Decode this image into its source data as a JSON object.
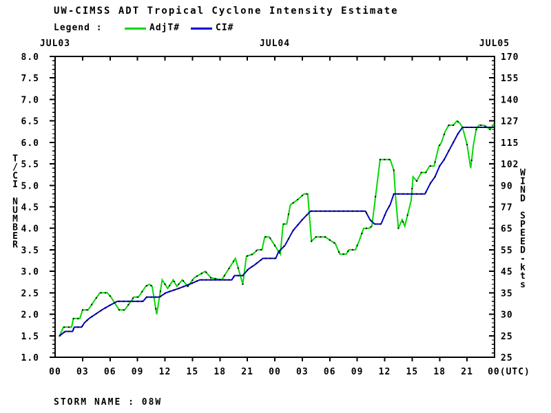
{
  "title": "UW-CIMSS ADT Tropical Cyclone Intensity Estimate",
  "legend": {
    "label": "Legend :",
    "series": [
      {
        "name": "AdjT#",
        "color": "#00d800"
      },
      {
        "name": "CI#",
        "color": "#0000d0"
      }
    ]
  },
  "storm_name": "STORM NAME : 08W",
  "chart_data": {
    "type": "line",
    "title": "UW-CIMSS ADT Tropical Cyclone Intensity Estimate",
    "grid": false,
    "x_axis": {
      "hours_span": 48,
      "tick_interval_hours": 3,
      "bottom_tick_labels": [
        "00",
        "03",
        "06",
        "09",
        "12",
        "15",
        "18",
        "21",
        "00",
        "03",
        "06",
        "09",
        "12",
        "15",
        "18",
        "21",
        "00(UTC)"
      ],
      "top_date_labels": [
        {
          "label": "JUL03",
          "hour": 0
        },
        {
          "label": "JUL04",
          "hour": 24
        },
        {
          "label": "JUL05",
          "hour": 48
        }
      ]
    },
    "y_axis_left": {
      "title": "T/CI NUMBER",
      "min": 1.0,
      "max": 8.0,
      "major_step": 0.5,
      "minor_step": 0.1,
      "tick_labels": [
        "8.0",
        "7.5",
        "7.0",
        "6.5",
        "6.0",
        "5.5",
        "5.0",
        "4.5",
        "4.0",
        "3.5",
        "3.0",
        "2.5",
        "2.0",
        "1.5",
        "1.0"
      ]
    },
    "y_axis_right": {
      "title": "WIND SPEED-kts",
      "tick_labels": [
        "170",
        "155",
        "140",
        "127",
        "115",
        "102",
        "90",
        "77",
        "65",
        "55",
        "45",
        "35",
        "30",
        "25",
        "25"
      ]
    },
    "series": [
      {
        "name": "AdjT#",
        "color": "#00d800",
        "markers": true,
        "points": [
          [
            0.5,
            1.5
          ],
          [
            0.9,
            1.7
          ],
          [
            1.8,
            1.7
          ],
          [
            2.0,
            1.9
          ],
          [
            2.7,
            1.9
          ],
          [
            3.0,
            2.1
          ],
          [
            3.6,
            2.1
          ],
          [
            4.4,
            2.35
          ],
          [
            4.9,
            2.5
          ],
          [
            5.7,
            2.5
          ],
          [
            6.1,
            2.4
          ],
          [
            7.0,
            2.1
          ],
          [
            7.6,
            2.1
          ],
          [
            8.1,
            2.25
          ],
          [
            8.6,
            2.4
          ],
          [
            9.1,
            2.4
          ],
          [
            9.9,
            2.65
          ],
          [
            10.3,
            2.7
          ],
          [
            10.6,
            2.65
          ],
          [
            11.1,
            2.0
          ],
          [
            11.7,
            2.8
          ],
          [
            12.3,
            2.6
          ],
          [
            12.9,
            2.8
          ],
          [
            13.3,
            2.65
          ],
          [
            13.9,
            2.8
          ],
          [
            14.5,
            2.65
          ],
          [
            15.2,
            2.85
          ],
          [
            16.4,
            3.0
          ],
          [
            17.0,
            2.85
          ],
          [
            18.2,
            2.8
          ],
          [
            19.7,
            3.3
          ],
          [
            20.5,
            2.7
          ],
          [
            20.9,
            3.35
          ],
          [
            21.6,
            3.4
          ],
          [
            22.1,
            3.5
          ],
          [
            22.6,
            3.5
          ],
          [
            22.9,
            3.8
          ],
          [
            23.4,
            3.8
          ],
          [
            24.0,
            3.6
          ],
          [
            24.6,
            3.4
          ],
          [
            24.9,
            4.1
          ],
          [
            25.3,
            4.1
          ],
          [
            25.7,
            4.55
          ],
          [
            26.4,
            4.65
          ],
          [
            27.2,
            4.8
          ],
          [
            27.6,
            4.8
          ],
          [
            28.0,
            3.7
          ],
          [
            28.5,
            3.8
          ],
          [
            29.5,
            3.8
          ],
          [
            30.2,
            3.7
          ],
          [
            30.6,
            3.65
          ],
          [
            31.1,
            3.4
          ],
          [
            31.8,
            3.4
          ],
          [
            32.1,
            3.5
          ],
          [
            32.8,
            3.5
          ],
          [
            33.2,
            3.7
          ],
          [
            33.7,
            4.0
          ],
          [
            34.3,
            4.0
          ],
          [
            34.6,
            4.05
          ],
          [
            35.5,
            5.6
          ],
          [
            36.6,
            5.6
          ],
          [
            37.0,
            5.35
          ],
          [
            37.2,
            4.7
          ],
          [
            37.5,
            4.0
          ],
          [
            37.9,
            4.2
          ],
          [
            38.2,
            4.05
          ],
          [
            38.9,
            4.65
          ],
          [
            39.1,
            5.2
          ],
          [
            39.5,
            5.1
          ],
          [
            40.0,
            5.3
          ],
          [
            40.5,
            5.3
          ],
          [
            40.9,
            5.45
          ],
          [
            41.4,
            5.45
          ],
          [
            41.9,
            5.9
          ],
          [
            42.2,
            6.0
          ],
          [
            42.6,
            6.25
          ],
          [
            43.0,
            6.4
          ],
          [
            43.5,
            6.4
          ],
          [
            43.9,
            6.5
          ],
          [
            44.2,
            6.45
          ],
          [
            44.5,
            6.35
          ],
          [
            45.0,
            5.95
          ],
          [
            45.4,
            5.4
          ],
          [
            45.7,
            5.95
          ],
          [
            46.0,
            6.3
          ],
          [
            46.3,
            6.4
          ],
          [
            46.8,
            6.4
          ],
          [
            47.2,
            6.35
          ],
          [
            47.5,
            6.3
          ],
          [
            48.0,
            6.45
          ]
        ]
      },
      {
        "name": "CI#",
        "color": "#0000d0",
        "markers": true,
        "points": [
          [
            0.5,
            1.5
          ],
          [
            1.1,
            1.6
          ],
          [
            1.9,
            1.6
          ],
          [
            2.1,
            1.7
          ],
          [
            2.9,
            1.7
          ],
          [
            3.2,
            1.8
          ],
          [
            3.7,
            1.9
          ],
          [
            4.4,
            2.0
          ],
          [
            5.1,
            2.1
          ],
          [
            5.9,
            2.2
          ],
          [
            6.8,
            2.3
          ],
          [
            9.6,
            2.3
          ],
          [
            10.0,
            2.4
          ],
          [
            11.4,
            2.4
          ],
          [
            12.1,
            2.5
          ],
          [
            13.5,
            2.6
          ],
          [
            14.7,
            2.7
          ],
          [
            15.8,
            2.8
          ],
          [
            19.3,
            2.8
          ],
          [
            19.6,
            2.9
          ],
          [
            20.5,
            2.9
          ],
          [
            21.1,
            3.05
          ],
          [
            21.8,
            3.15
          ],
          [
            22.7,
            3.3
          ],
          [
            24.1,
            3.3
          ],
          [
            24.4,
            3.45
          ],
          [
            25.1,
            3.6
          ],
          [
            26.0,
            3.95
          ],
          [
            27.0,
            4.2
          ],
          [
            27.9,
            4.4
          ],
          [
            33.9,
            4.4
          ],
          [
            34.4,
            4.2
          ],
          [
            34.9,
            4.1
          ],
          [
            35.6,
            4.1
          ],
          [
            36.2,
            4.4
          ],
          [
            36.6,
            4.55
          ],
          [
            37.0,
            4.8
          ],
          [
            40.4,
            4.8
          ],
          [
            41.0,
            5.05
          ],
          [
            41.5,
            5.2
          ],
          [
            42.0,
            5.45
          ],
          [
            42.5,
            5.6
          ],
          [
            43.0,
            5.8
          ],
          [
            43.5,
            6.0
          ],
          [
            44.0,
            6.2
          ],
          [
            44.5,
            6.35
          ],
          [
            48.0,
            6.35
          ]
        ]
      }
    ]
  }
}
